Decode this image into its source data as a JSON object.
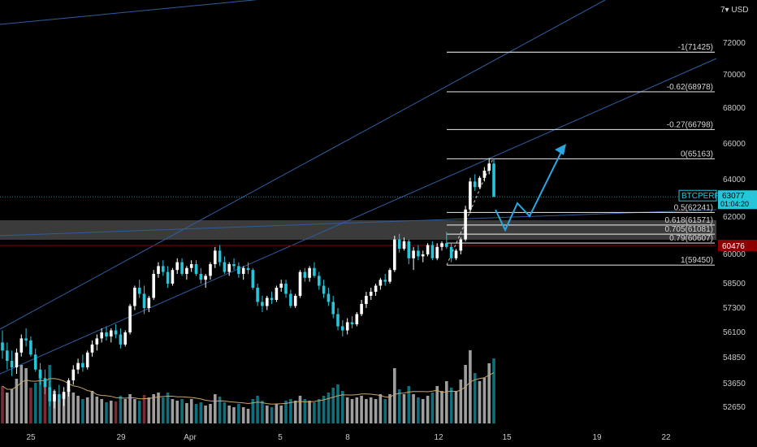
{
  "header": {
    "currency_label": "USD",
    "axis_menu_glyph": "7▾"
  },
  "colors": {
    "background": "#000000",
    "bull": "#ffffff",
    "bear": "#26c6da",
    "vol_bull": "#9e9e9e",
    "vol_bear": "#0f6f7a",
    "vol_red": "#7a2b36",
    "fib_line": "#cfcfcf",
    "trend": "#2f5d9e",
    "price_badge": "#26c6da",
    "red_level": "#8b0000",
    "zone": "#4a4a4a",
    "ma": "#c9a66b",
    "arrow": "#2aa6e0"
  },
  "chart_data": {
    "type": "candlestick",
    "symbol": "BTCPERP",
    "last_price": "63077",
    "countdown": "01:04:20",
    "red_level": "60476",
    "y_ticks": [
      "72000",
      "70000",
      "68000",
      "66000",
      "64000",
      "62000",
      "60000",
      "58500",
      "57300",
      "56100",
      "54850",
      "53650",
      "52650"
    ],
    "x_ticks": [
      "25",
      "29",
      "Apr",
      "5",
      "8",
      "12",
      "15",
      "19",
      "22"
    ],
    "fib_levels": [
      {
        "ratio": "-1",
        "price": "71425"
      },
      {
        "ratio": "-0.62",
        "price": "68978"
      },
      {
        "ratio": "-0.27",
        "price": "66798"
      },
      {
        "ratio": "0",
        "price": "65163"
      },
      {
        "ratio": "0.5",
        "price": "62241"
      },
      {
        "ratio": "0.618",
        "price": "61571"
      },
      {
        "ratio": "0.705",
        "price": "61081"
      },
      {
        "ratio": "0.79",
        "price": "60607"
      },
      {
        "ratio": "1",
        "price": "59450"
      }
    ],
    "candles": [
      [
        55600,
        56200,
        54800,
        55200
      ],
      [
        55200,
        55600,
        54300,
        54700
      ],
      [
        54700,
        55200,
        54000,
        54400
      ],
      [
        54400,
        55300,
        54100,
        55100
      ],
      [
        55100,
        56000,
        54900,
        55800
      ],
      [
        55800,
        56300,
        55400,
        55700
      ],
      [
        55700,
        55900,
        54900,
        55000
      ],
      [
        55000,
        55300,
        54200,
        54300
      ],
      [
        54300,
        54600,
        53600,
        53900
      ],
      [
        53900,
        54300,
        53200,
        53500
      ],
      [
        53500,
        53800,
        52700,
        52900
      ],
      [
        52900,
        53400,
        52600,
        53200
      ],
      [
        53200,
        53600,
        52800,
        53000
      ],
      [
        53000,
        53500,
        52700,
        53300
      ],
      [
        53300,
        53900,
        53100,
        53800
      ],
      [
        53800,
        54500,
        53600,
        54300
      ],
      [
        54300,
        54800,
        54100,
        54600
      ],
      [
        54600,
        55000,
        54200,
        54400
      ],
      [
        54400,
        55200,
        54300,
        55100
      ],
      [
        55100,
        55700,
        54900,
        55500
      ],
      [
        55500,
        56000,
        55200,
        55800
      ],
      [
        55800,
        56300,
        55600,
        56100
      ],
      [
        56100,
        56400,
        55700,
        55900
      ],
      [
        55900,
        56300,
        55600,
        56200
      ],
      [
        56200,
        56500,
        55800,
        56000
      ],
      [
        56000,
        56300,
        55300,
        55500
      ],
      [
        55500,
        56200,
        55400,
        56100
      ],
      [
        56100,
        57500,
        56000,
        57400
      ],
      [
        57400,
        58400,
        57200,
        58300
      ],
      [
        58300,
        58700,
        57800,
        58000
      ],
      [
        58000,
        58400,
        57000,
        57300
      ],
      [
        57300,
        57900,
        57100,
        57800
      ],
      [
        57800,
        59200,
        57700,
        59000
      ],
      [
        59000,
        59600,
        58800,
        59400
      ],
      [
        59400,
        59700,
        58900,
        59100
      ],
      [
        59100,
        59400,
        58300,
        58500
      ],
      [
        58500,
        59300,
        58400,
        59200
      ],
      [
        59200,
        59800,
        59000,
        59600
      ],
      [
        59600,
        59800,
        58900,
        59000
      ],
      [
        59000,
        59400,
        58700,
        59300
      ],
      [
        59300,
        59700,
        59100,
        59500
      ],
      [
        59500,
        59700,
        58900,
        59000
      ],
      [
        59000,
        59300,
        58500,
        58700
      ],
      [
        58700,
        59000,
        58300,
        58900
      ],
      [
        58900,
        59600,
        58700,
        59500
      ],
      [
        59500,
        60400,
        59300,
        60200
      ],
      [
        60200,
        60500,
        59400,
        59600
      ],
      [
        59600,
        59900,
        59000,
        59100
      ],
      [
        59100,
        59600,
        58900,
        59500
      ],
      [
        59500,
        59800,
        59200,
        59400
      ],
      [
        59400,
        59600,
        58800,
        59000
      ],
      [
        59000,
        59400,
        58700,
        59300
      ],
      [
        59300,
        59600,
        59000,
        59200
      ],
      [
        59200,
        59300,
        58200,
        58300
      ],
      [
        58300,
        58500,
        57400,
        57600
      ],
      [
        57600,
        57900,
        57100,
        57400
      ],
      [
        57400,
        57900,
        57200,
        57800
      ],
      [
        57800,
        58100,
        57500,
        57700
      ],
      [
        57700,
        58400,
        57600,
        58300
      ],
      [
        58300,
        58700,
        58100,
        58500
      ],
      [
        58500,
        58700,
        57800,
        58000
      ],
      [
        58000,
        58200,
        57300,
        57400
      ],
      [
        57400,
        58000,
        57300,
        57900
      ],
      [
        57900,
        59200,
        57800,
        59100
      ],
      [
        59100,
        59300,
        58600,
        58800
      ],
      [
        58800,
        59400,
        58600,
        59300
      ],
      [
        59300,
        59600,
        58800,
        58900
      ],
      [
        58900,
        59100,
        58200,
        58400
      ],
      [
        58400,
        58700,
        57800,
        58000
      ],
      [
        58000,
        58300,
        57400,
        57600
      ],
      [
        57600,
        57900,
        56800,
        57000
      ],
      [
        57000,
        57300,
        56200,
        56400
      ],
      [
        56400,
        56700,
        55900,
        56200
      ],
      [
        56200,
        56800,
        56000,
        56600
      ],
      [
        56600,
        56900,
        56300,
        56500
      ],
      [
        56500,
        57100,
        56400,
        57000
      ],
      [
        57000,
        57700,
        56900,
        57500
      ],
      [
        57500,
        58100,
        57300,
        57900
      ],
      [
        57900,
        58300,
        57700,
        58100
      ],
      [
        58100,
        58500,
        57900,
        58400
      ],
      [
        58400,
        58800,
        58200,
        58700
      ],
      [
        58700,
        59000,
        58400,
        58600
      ],
      [
        58600,
        59300,
        58500,
        59200
      ],
      [
        59200,
        61000,
        59100,
        60800
      ],
      [
        60800,
        61100,
        60100,
        60300
      ],
      [
        60300,
        60900,
        60200,
        60700
      ],
      [
        60700,
        60800,
        59500,
        59800
      ],
      [
        59800,
        60400,
        59200,
        60200
      ],
      [
        60200,
        60500,
        59700,
        59900
      ],
      [
        59900,
        60200,
        59600,
        60000
      ],
      [
        60000,
        60600,
        59900,
        60500
      ],
      [
        60500,
        60700,
        59700,
        59800
      ],
      [
        59800,
        60600,
        59700,
        60400
      ],
      [
        60400,
        60700,
        60200,
        60600
      ],
      [
        60600,
        61200,
        60300,
        60400
      ],
      [
        60400,
        60600,
        59600,
        59800
      ],
      [
        59800,
        60300,
        59700,
        60200
      ],
      [
        60200,
        60900,
        60000,
        60800
      ],
      [
        60800,
        62600,
        60700,
        62400
      ],
      [
        62400,
        64100,
        62200,
        63900
      ],
      [
        63900,
        64300,
        63400,
        63600
      ],
      [
        63600,
        64200,
        63500,
        64100
      ],
      [
        64100,
        64700,
        63900,
        64500
      ],
      [
        64500,
        65200,
        64300,
        64900
      ],
      [
        64900,
        65163,
        63100,
        63077
      ]
    ],
    "volumes": [
      [
        0.46,
        "bear"
      ],
      [
        0.38,
        "bull"
      ],
      [
        0.42,
        "bull"
      ],
      [
        0.55,
        "bull"
      ],
      [
        0.72,
        "bull"
      ],
      [
        0.68,
        "bull"
      ],
      [
        0.44,
        "bear"
      ],
      [
        0.5,
        "bear"
      ],
      [
        0.6,
        "bear"
      ],
      [
        0.5,
        "bear"
      ],
      [
        0.72,
        "bear"
      ],
      [
        0.4,
        "bull"
      ],
      [
        0.3,
        "bull"
      ],
      [
        0.36,
        "bull"
      ],
      [
        0.42,
        "bull"
      ],
      [
        0.38,
        "bull"
      ],
      [
        0.34,
        "bull"
      ],
      [
        0.3,
        "bear"
      ],
      [
        0.32,
        "bull"
      ],
      [
        0.4,
        "bull"
      ],
      [
        0.33,
        "bull"
      ],
      [
        0.3,
        "bull"
      ],
      [
        0.26,
        "bear"
      ],
      [
        0.28,
        "bull"
      ],
      [
        0.27,
        "bear"
      ],
      [
        0.34,
        "bear"
      ],
      [
        0.3,
        "bull"
      ],
      [
        0.36,
        "bull"
      ],
      [
        0.3,
        "bull"
      ],
      [
        0.28,
        "bear"
      ],
      [
        0.35,
        "bear"
      ],
      [
        0.32,
        "bull"
      ],
      [
        0.36,
        "bull"
      ],
      [
        0.38,
        "bull"
      ],
      [
        0.32,
        "bear"
      ],
      [
        0.38,
        "bear"
      ],
      [
        0.3,
        "bull"
      ],
      [
        0.28,
        "bull"
      ],
      [
        0.3,
        "bear"
      ],
      [
        0.25,
        "bull"
      ],
      [
        0.3,
        "bull"
      ],
      [
        0.24,
        "bear"
      ],
      [
        0.26,
        "bear"
      ],
      [
        0.22,
        "bull"
      ],
      [
        0.24,
        "bull"
      ],
      [
        0.36,
        "bull"
      ],
      [
        0.33,
        "bear"
      ],
      [
        0.26,
        "bear"
      ],
      [
        0.22,
        "bull"
      ],
      [
        0.2,
        "bull"
      ],
      [
        0.24,
        "bear"
      ],
      [
        0.2,
        "bull"
      ],
      [
        0.18,
        "bull"
      ],
      [
        0.3,
        "bear"
      ],
      [
        0.34,
        "bear"
      ],
      [
        0.28,
        "bear"
      ],
      [
        0.22,
        "bull"
      ],
      [
        0.2,
        "bear"
      ],
      [
        0.24,
        "bull"
      ],
      [
        0.22,
        "bull"
      ],
      [
        0.28,
        "bear"
      ],
      [
        0.3,
        "bear"
      ],
      [
        0.28,
        "bull"
      ],
      [
        0.34,
        "bull"
      ],
      [
        0.3,
        "bear"
      ],
      [
        0.28,
        "bull"
      ],
      [
        0.26,
        "bear"
      ],
      [
        0.3,
        "bear"
      ],
      [
        0.34,
        "bear"
      ],
      [
        0.38,
        "bear"
      ],
      [
        0.44,
        "bear"
      ],
      [
        0.48,
        "bear"
      ],
      [
        0.4,
        "bear"
      ],
      [
        0.32,
        "bull"
      ],
      [
        0.3,
        "bull"
      ],
      [
        0.32,
        "bull"
      ],
      [
        0.34,
        "bull"
      ],
      [
        0.3,
        "bull"
      ],
      [
        0.32,
        "bull"
      ],
      [
        0.3,
        "bull"
      ],
      [
        0.36,
        "bull"
      ],
      [
        0.3,
        "bear"
      ],
      [
        0.36,
        "bull"
      ],
      [
        0.68,
        "bull"
      ],
      [
        0.42,
        "bear"
      ],
      [
        0.36,
        "bull"
      ],
      [
        0.46,
        "bear"
      ],
      [
        0.36,
        "bull"
      ],
      [
        0.32,
        "bear"
      ],
      [
        0.3,
        "bull"
      ],
      [
        0.34,
        "bull"
      ],
      [
        0.38,
        "bear"
      ],
      [
        0.46,
        "bull"
      ],
      [
        0.4,
        "bull"
      ],
      [
        0.52,
        "bull"
      ],
      [
        0.44,
        "bear"
      ],
      [
        0.4,
        "bull"
      ],
      [
        0.54,
        "bull"
      ],
      [
        0.72,
        "bull"
      ],
      [
        0.9,
        "bull"
      ],
      [
        0.62,
        "bear"
      ],
      [
        0.52,
        "bull"
      ],
      [
        0.56,
        "bull"
      ],
      [
        0.74,
        "bull"
      ],
      [
        0.8,
        "bear"
      ]
    ]
  }
}
